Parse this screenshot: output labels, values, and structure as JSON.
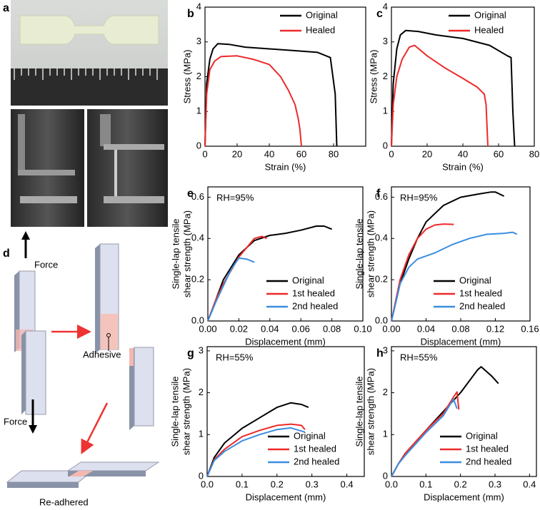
{
  "photo_panel": {
    "label": "a"
  },
  "diagram": {
    "label": "d",
    "texts": [
      "Force",
      "Adhesive",
      "Force",
      "Re-adhered"
    ]
  },
  "chart_data": [
    {
      "type": "line",
      "panel": "b",
      "xlabel": "Strain (%)",
      "ylabel": "Stress (MPa)",
      "xlim": [
        0,
        100
      ],
      "xticks": [
        0,
        20,
        40,
        60,
        80
      ],
      "ylim": [
        0,
        4
      ],
      "yticks": [
        0,
        1,
        2,
        3,
        4
      ],
      "legend": "upper right",
      "series": [
        {
          "name": "Original",
          "color": "#000000",
          "x": [
            0,
            1,
            3,
            5,
            8,
            15,
            25,
            40,
            55,
            70,
            78,
            81,
            82
          ],
          "values": [
            0,
            1.8,
            2.5,
            2.8,
            2.95,
            2.93,
            2.85,
            2.8,
            2.75,
            2.7,
            2.55,
            1.5,
            0
          ]
        },
        {
          "name": "Healed",
          "color": "#ee2a2a",
          "x": [
            0,
            1,
            3,
            6,
            10,
            20,
            30,
            40,
            47,
            52,
            56,
            58,
            59,
            60
          ],
          "values": [
            0,
            1.5,
            2.2,
            2.45,
            2.58,
            2.6,
            2.5,
            2.35,
            2.0,
            1.6,
            1.2,
            0.8,
            0.5,
            0
          ]
        }
      ]
    },
    {
      "type": "line",
      "panel": "c",
      "xlabel": "Strain (%)",
      "ylabel": "Stress (MPa)",
      "xlim": [
        0,
        80
      ],
      "xticks": [
        0,
        20,
        40,
        60,
        80
      ],
      "ylim": [
        0,
        4
      ],
      "yticks": [
        0,
        1,
        2,
        3,
        4
      ],
      "legend": "upper right",
      "series": [
        {
          "name": "Original",
          "color": "#000000",
          "x": [
            0,
            1,
            3,
            5,
            8,
            15,
            25,
            40,
            55,
            65,
            67,
            68,
            69
          ],
          "values": [
            0,
            1.8,
            2.8,
            3.2,
            3.33,
            3.3,
            3.2,
            3.1,
            2.9,
            2.6,
            2.55,
            1.0,
            0
          ]
        },
        {
          "name": "Healed",
          "color": "#ee2a2a",
          "x": [
            0,
            1,
            3,
            6,
            10,
            13,
            20,
            30,
            40,
            48,
            52,
            53,
            54
          ],
          "values": [
            0,
            1.2,
            2.0,
            2.5,
            2.85,
            2.9,
            2.6,
            2.25,
            1.95,
            1.7,
            1.5,
            1.2,
            0
          ]
        }
      ]
    },
    {
      "type": "line",
      "panel": "e",
      "annotation": "RH=95%",
      "xlabel": "Displacement (mm)",
      "ylabel": [
        "Single-lap tensile",
        "shear strength (MPa)"
      ],
      "xlim": [
        0,
        0.1
      ],
      "xticks": [
        {
          "value": 0,
          "label": "0.00"
        },
        0.02,
        0.04,
        0.06,
        0.08,
        {
          "value": 0.1,
          "label": "0.10"
        }
      ],
      "ylim": [
        0,
        0.65
      ],
      "yticks": [
        {
          "value": 0,
          "label": "0.0"
        },
        0.2,
        0.4,
        0.6
      ],
      "legend": "lower right",
      "series": [
        {
          "name": "Original",
          "color": "#000000",
          "x": [
            0,
            0.005,
            0.01,
            0.02,
            0.03,
            0.04,
            0.05,
            0.06,
            0.07,
            0.075,
            0.08
          ],
          "values": [
            0,
            0.1,
            0.2,
            0.32,
            0.39,
            0.415,
            0.425,
            0.44,
            0.46,
            0.46,
            0.445
          ]
        },
        {
          "name": "1st healed",
          "color": "#ee2a2a",
          "x": [
            0,
            0.005,
            0.01,
            0.02,
            0.03,
            0.035,
            0.038
          ],
          "values": [
            0,
            0.1,
            0.18,
            0.31,
            0.4,
            0.41,
            0.4
          ]
        },
        {
          "name": "2nd healed",
          "color": "#3a8ee0",
          "x": [
            0,
            0.005,
            0.01,
            0.015,
            0.02,
            0.025,
            0.03
          ],
          "values": [
            0,
            0.09,
            0.17,
            0.25,
            0.305,
            0.3,
            0.285
          ]
        }
      ]
    },
    {
      "type": "line",
      "panel": "f",
      "annotation": "RH=95%",
      "xlabel": "Displacement (mm)",
      "ylabel": [
        "Single-lap tensile",
        "shear strength (MPa)"
      ],
      "xlim": [
        0,
        0.16
      ],
      "xticks": [
        {
          "value": 0,
          "label": "0.00"
        },
        0.04,
        0.08,
        0.12,
        0.16
      ],
      "ylim": [
        0,
        0.65
      ],
      "yticks": [
        {
          "value": 0,
          "label": "0.0"
        },
        0.2,
        0.4,
        0.6
      ],
      "legend": "lower right",
      "series": [
        {
          "name": "Original",
          "color": "#000000",
          "x": [
            0,
            0.01,
            0.02,
            0.03,
            0.04,
            0.06,
            0.08,
            0.1,
            0.115,
            0.12,
            0.13
          ],
          "values": [
            0,
            0.18,
            0.3,
            0.4,
            0.48,
            0.56,
            0.6,
            0.615,
            0.625,
            0.625,
            0.605
          ]
        },
        {
          "name": "1st healed",
          "color": "#ee2a2a",
          "x": [
            0,
            0.01,
            0.02,
            0.03,
            0.04,
            0.05,
            0.06,
            0.072
          ],
          "values": [
            0,
            0.2,
            0.32,
            0.4,
            0.445,
            0.465,
            0.47,
            0.468
          ]
        },
        {
          "name": "2nd healed",
          "color": "#3a8ee0",
          "x": [
            0,
            0.01,
            0.02,
            0.03,
            0.05,
            0.07,
            0.09,
            0.11,
            0.13,
            0.14,
            0.145
          ],
          "values": [
            0,
            0.18,
            0.26,
            0.3,
            0.33,
            0.37,
            0.4,
            0.42,
            0.425,
            0.43,
            0.42
          ]
        }
      ]
    },
    {
      "type": "line",
      "panel": "g",
      "annotation": "RH=55%",
      "xlabel": "Displacement (mm)",
      "ylabel": [
        "Single-lap tensile",
        "shear strength (MPa)"
      ],
      "xlim": [
        0,
        0.45
      ],
      "xticks": [
        {
          "value": 0,
          "label": "0.0"
        },
        0.1,
        0.2,
        0.3,
        0.4
      ],
      "ylim": [
        0,
        3.1
      ],
      "yticks": [
        0,
        1,
        2,
        3
      ],
      "legend": "lower right",
      "series": [
        {
          "name": "Original",
          "color": "#000000",
          "x": [
            0,
            0.02,
            0.05,
            0.1,
            0.15,
            0.2,
            0.24,
            0.27,
            0.29
          ],
          "values": [
            0,
            0.45,
            0.8,
            1.15,
            1.4,
            1.65,
            1.76,
            1.72,
            1.65
          ]
        },
        {
          "name": "1st healed",
          "color": "#ee2a2a",
          "x": [
            0,
            0.02,
            0.05,
            0.1,
            0.15,
            0.2,
            0.24,
            0.27,
            0.28
          ],
          "values": [
            0,
            0.4,
            0.65,
            0.95,
            1.1,
            1.22,
            1.25,
            1.22,
            1.12
          ]
        },
        {
          "name": "2nd healed",
          "color": "#3a8ee0",
          "x": [
            0,
            0.02,
            0.05,
            0.1,
            0.15,
            0.2,
            0.24,
            0.28
          ],
          "values": [
            0,
            0.38,
            0.6,
            0.85,
            1.0,
            1.12,
            1.16,
            1.06
          ]
        }
      ]
    },
    {
      "type": "line",
      "panel": "h",
      "annotation": "RH=55%",
      "xlabel": "Displacement (mm)",
      "ylabel": [
        "Single-lap tensile",
        "shear strength (MPa)"
      ],
      "xlim": [
        0,
        0.42
      ],
      "xticks": [
        {
          "value": 0,
          "label": "0.0"
        },
        0.1,
        0.2,
        0.3,
        0.4
      ],
      "ylim": [
        0,
        3.1
      ],
      "yticks": [
        0,
        1,
        2,
        3
      ],
      "legend": "lower right",
      "series": [
        {
          "name": "Original",
          "color": "#000000",
          "x": [
            0,
            0.02,
            0.04,
            0.1,
            0.15,
            0.2,
            0.25,
            0.26,
            0.29,
            0.31
          ],
          "values": [
            0,
            0.3,
            0.55,
            1.1,
            1.55,
            2.0,
            2.55,
            2.62,
            2.4,
            2.22
          ]
        },
        {
          "name": "1st healed",
          "color": "#ee2a2a",
          "x": [
            0,
            0.02,
            0.04,
            0.1,
            0.15,
            0.18,
            0.19,
            0.195
          ],
          "values": [
            0,
            0.3,
            0.55,
            1.1,
            1.5,
            1.9,
            2.02,
            1.6
          ]
        },
        {
          "name": "2nd healed",
          "color": "#3a8ee0",
          "x": [
            0,
            0.02,
            0.04,
            0.1,
            0.15,
            0.18,
            0.19
          ],
          "values": [
            0,
            0.3,
            0.5,
            1.05,
            1.45,
            1.85,
            1.62
          ]
        }
      ]
    }
  ]
}
